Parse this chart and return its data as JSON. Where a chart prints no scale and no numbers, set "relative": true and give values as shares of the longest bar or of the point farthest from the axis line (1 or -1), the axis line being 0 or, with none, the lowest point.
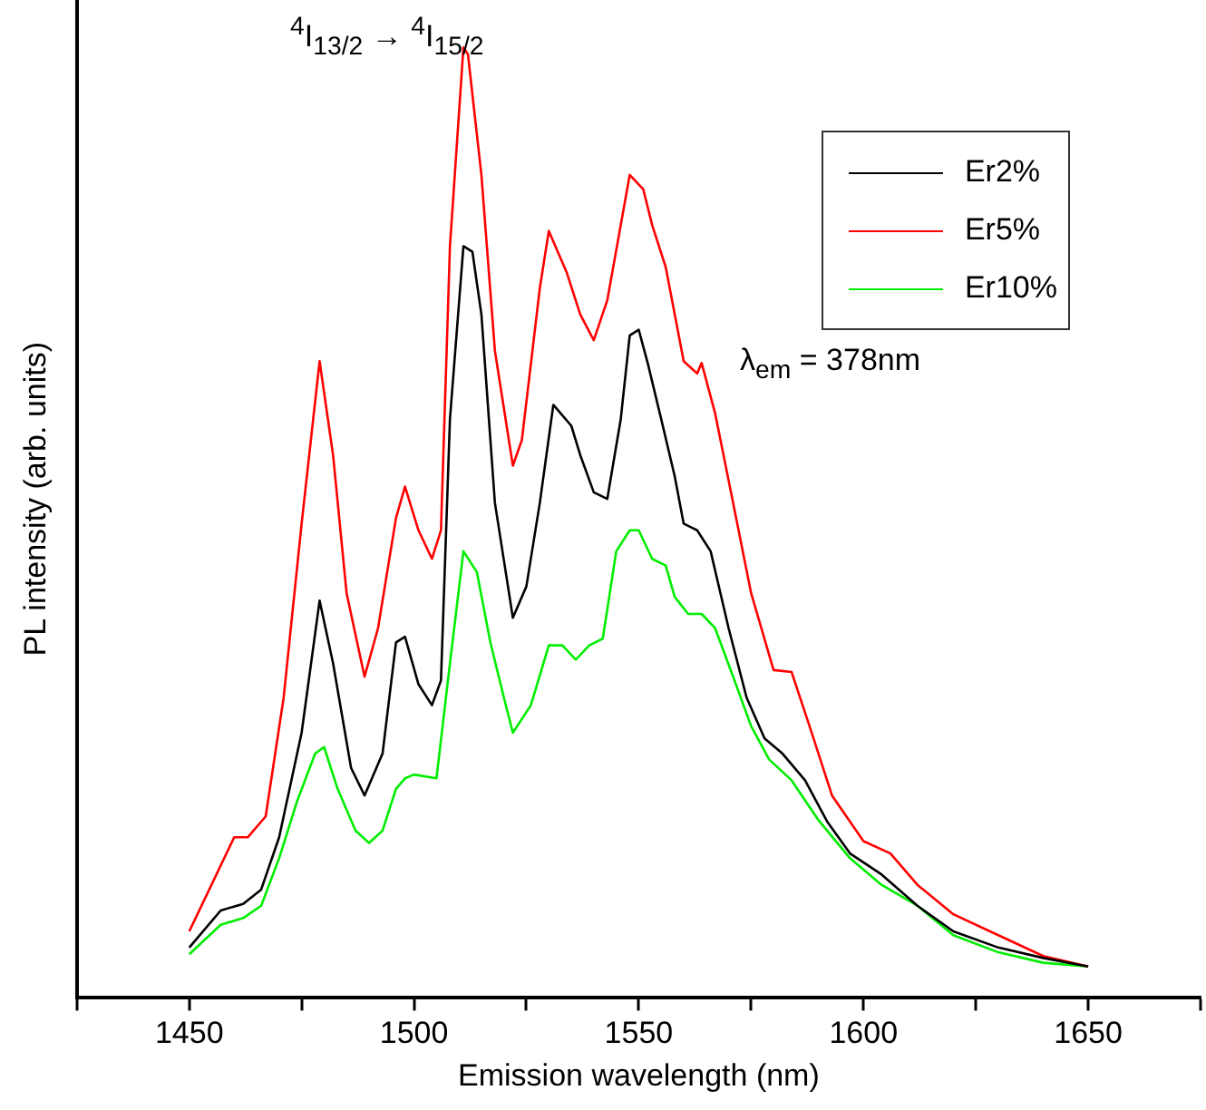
{
  "chart_data": {
    "type": "line",
    "xlabel": "Emission wavelength (nm)",
    "ylabel": "PL intensity (arb. units)",
    "relative": true,
    "xlim": [
      1425,
      1675
    ],
    "xticks": [
      {
        "value": 1425,
        "label": null
      },
      1450,
      {
        "value": 1475,
        "label": null
      },
      1500,
      {
        "value": 1525,
        "label": null
      },
      1550,
      {
        "value": 1575,
        "label": null
      },
      1600,
      {
        "value": 1625,
        "label": null
      },
      1650,
      {
        "value": 1675,
        "label": null
      }
    ],
    "legend": "top right",
    "grid": false,
    "marker": "none",
    "line_style": "solid",
    "annotations": [
      "$^{4}$I$_{13/2}$ → $^{4}$I$_{15/2}$",
      "λ$_{em}$ = 378nm"
    ],
    "series": [
      {
        "name": "Er2%",
        "color": "#000000",
        "x": [
          1450,
          1457,
          1462,
          1466,
          1470,
          1475,
          1479,
          1482,
          1486,
          1489,
          1493,
          1496,
          1498,
          1501,
          1504,
          1506,
          1508,
          1511,
          1513,
          1515,
          1518,
          1522,
          1525,
          1528,
          1531,
          1535,
          1537,
          1540,
          1543,
          1546,
          1548,
          1550,
          1552,
          1555,
          1558,
          1560,
          1563,
          1566,
          1570,
          1574,
          1578,
          1582,
          1587,
          1592,
          1597,
          1604,
          1612,
          1620,
          1630,
          1640,
          1650
        ],
        "values": [
          0.053,
          0.092,
          0.099,
          0.114,
          0.169,
          0.279,
          0.418,
          0.352,
          0.242,
          0.213,
          0.257,
          0.374,
          0.38,
          0.33,
          0.308,
          0.334,
          0.609,
          0.791,
          0.785,
          0.719,
          0.521,
          0.4,
          0.433,
          0.521,
          0.624,
          0.602,
          0.571,
          0.532,
          0.525,
          0.609,
          0.697,
          0.703,
          0.668,
          0.609,
          0.549,
          0.499,
          0.492,
          0.47,
          0.389,
          0.316,
          0.273,
          0.257,
          0.229,
          0.185,
          0.152,
          0.13,
          0.097,
          0.07,
          0.053,
          0.042,
          0.033
        ]
      },
      {
        "name": "Er5%",
        "color": "#ff0000",
        "x": [
          1450,
          1460,
          1463,
          1467,
          1471,
          1475,
          1479,
          1482,
          1485,
          1489,
          1492,
          1496,
          1498,
          1501,
          1504,
          1506,
          1508,
          1511,
          1512,
          1515,
          1518,
          1522,
          1524,
          1528,
          1530,
          1534,
          1537,
          1540,
          1543,
          1548,
          1551,
          1553,
          1556,
          1560,
          1563,
          1564,
          1567,
          1571,
          1575,
          1580,
          1584,
          1588,
          1593,
          1600,
          1606,
          1612,
          1620,
          1630,
          1640,
          1650
        ],
        "values": [
          0.07,
          0.169,
          0.169,
          0.191,
          0.316,
          0.499,
          0.67,
          0.571,
          0.426,
          0.338,
          0.389,
          0.505,
          0.538,
          0.492,
          0.462,
          0.492,
          0.791,
          1,
          0.993,
          0.866,
          0.681,
          0.56,
          0.587,
          0.747,
          0.807,
          0.763,
          0.719,
          0.692,
          0.734,
          0.866,
          0.851,
          0.813,
          0.769,
          0.67,
          0.657,
          0.668,
          0.615,
          0.521,
          0.426,
          0.345,
          0.343,
          0.286,
          0.213,
          0.165,
          0.152,
          0.119,
          0.088,
          0.066,
          0.044,
          0.033
        ]
      },
      {
        "name": "Er10%",
        "color": "#00ee00",
        "x": [
          1450,
          1457,
          1462,
          1466,
          1470,
          1474,
          1478,
          1480,
          1483,
          1487,
          1490,
          1493,
          1496,
          1498,
          1500,
          1505,
          1508,
          1511,
          1514,
          1517,
          1520,
          1522,
          1526,
          1530,
          1533,
          1536,
          1539,
          1542,
          1545,
          1548,
          1550,
          1553,
          1556,
          1558,
          1561,
          1564,
          1567,
          1571,
          1575,
          1579,
          1584,
          1590,
          1597,
          1604,
          1612,
          1620,
          1630,
          1640,
          1650
        ],
        "values": [
          0.046,
          0.077,
          0.084,
          0.097,
          0.147,
          0.207,
          0.257,
          0.264,
          0.22,
          0.176,
          0.163,
          0.176,
          0.22,
          0.231,
          0.235,
          0.231,
          0.352,
          0.47,
          0.448,
          0.374,
          0.316,
          0.279,
          0.308,
          0.371,
          0.371,
          0.356,
          0.371,
          0.378,
          0.47,
          0.492,
          0.492,
          0.462,
          0.455,
          0.422,
          0.404,
          0.404,
          0.389,
          0.338,
          0.286,
          0.251,
          0.229,
          0.187,
          0.147,
          0.119,
          0.097,
          0.066,
          0.048,
          0.037,
          0.033
        ]
      }
    ]
  }
}
